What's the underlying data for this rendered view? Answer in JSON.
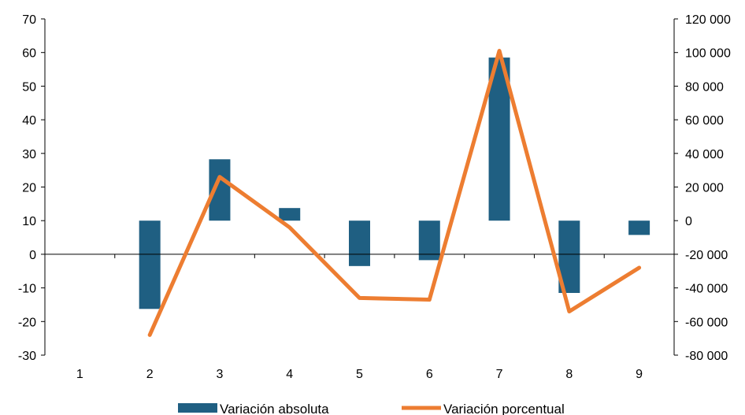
{
  "chart_data": {
    "type": "bar+line",
    "title": "",
    "xlabel": "",
    "ylabel": "",
    "categories": [
      "1",
      "2",
      "3",
      "4",
      "5",
      "6",
      "7",
      "8",
      "9"
    ],
    "left_axis": {
      "ylim": [
        -30,
        70
      ],
      "ticks": [
        70,
        60,
        50,
        40,
        30,
        20,
        10,
        0,
        -10,
        -20,
        -30
      ],
      "tick_labels": [
        "70",
        "60",
        "50",
        "40",
        "30",
        "20",
        "10",
        "0",
        "-10",
        "-20",
        "-30"
      ]
    },
    "right_axis": {
      "ylim": [
        -80000,
        120000
      ],
      "ticks": [
        120000,
        100000,
        80000,
        60000,
        40000,
        20000,
        0,
        -20000,
        -40000,
        -60000,
        -80000
      ],
      "tick_labels": [
        "120 000",
        "100 000",
        "80 000",
        "60 000",
        "40 000",
        "20 000",
        "0",
        "-20 000",
        "-40 000",
        "-60 000",
        "-80 000"
      ]
    },
    "series": [
      {
        "name": "Variación absoluta",
        "type": "bar",
        "axis": "right",
        "color": "#1f5f82",
        "values": [
          null,
          -52500,
          36500,
          7500,
          -27000,
          -23500,
          97000,
          -43000,
          -8500
        ]
      },
      {
        "name": "Variación porcentual",
        "type": "line",
        "axis": "left",
        "color": "#ed7d31",
        "values": [
          null,
          -24,
          23,
          8,
          -13,
          -13.5,
          60.5,
          -17,
          -4
        ]
      }
    ],
    "grid": false,
    "legend_position": "bottom"
  }
}
